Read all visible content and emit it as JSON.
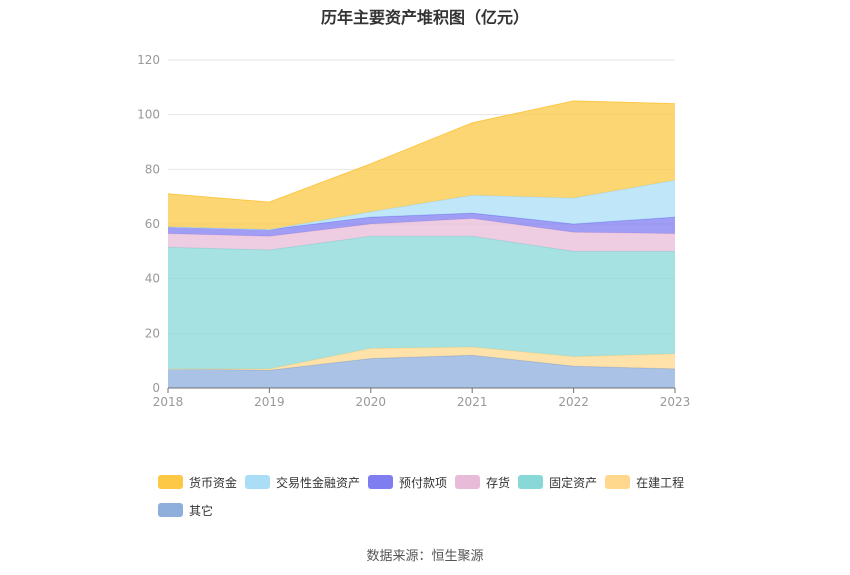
{
  "chart_data": {
    "type": "area",
    "title": "历年主要资产堆积图（亿元）",
    "categories": [
      "2018",
      "2019",
      "2020",
      "2021",
      "2022",
      "2023"
    ],
    "ylim": [
      0,
      120
    ],
    "yticks": [
      0,
      20,
      40,
      60,
      80,
      100,
      120
    ],
    "grid": true,
    "legend_position": "bottom",
    "series": [
      {
        "name": "其它",
        "color": "#8eaedc",
        "values": [
          7,
          6.5,
          10.8,
          12,
          8,
          7
        ]
      },
      {
        "name": "在建工程",
        "color": "#ffd88e",
        "values": [
          0,
          0.5,
          3.7,
          3,
          3.5,
          5.5
        ]
      },
      {
        "name": "固定资产",
        "color": "#88d8d8",
        "values": [
          44.5,
          43.5,
          41,
          40.5,
          38.5,
          37.5
        ]
      },
      {
        "name": "存货",
        "color": "#e8bcd8",
        "values": [
          5,
          5,
          4.5,
          6.5,
          7,
          6.5
        ]
      },
      {
        "name": "预付款项",
        "color": "#7f7ef0",
        "values": [
          2.5,
          2.5,
          2.5,
          2,
          3,
          6
        ]
      },
      {
        "name": "交易性金融资产",
        "color": "#aadef7",
        "values": [
          0,
          0,
          2,
          6.5,
          9.5,
          13.5
        ]
      },
      {
        "name": "货币资金",
        "color": "#fcc846",
        "values": [
          12,
          10,
          17.5,
          26.5,
          35.5,
          28
        ]
      }
    ]
  },
  "source": "数据来源：恒生聚源"
}
